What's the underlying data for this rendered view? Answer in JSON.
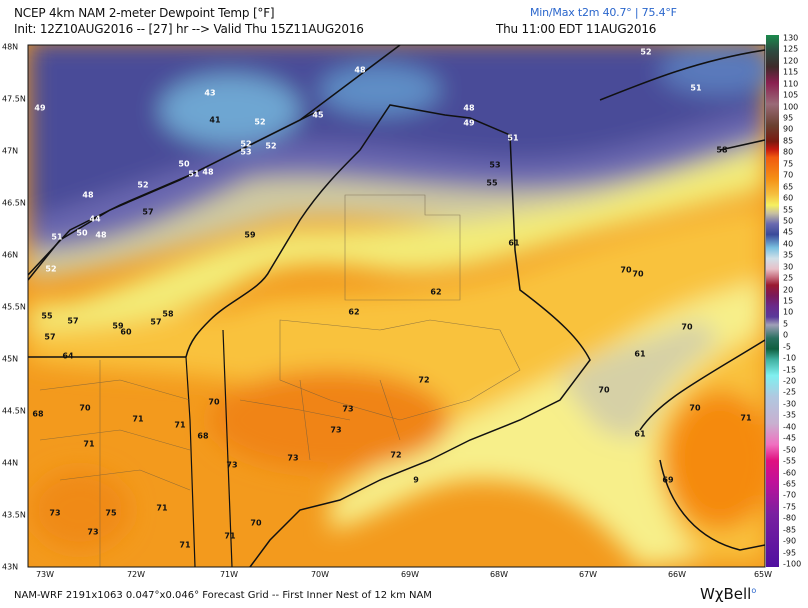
{
  "header": {
    "title": "NCEP 4km NAM 2-meter Dewpoint Temp [°F]",
    "init_line": "Init: 12Z10AUG2016 -- [27] hr --> Valid Thu 15Z11AUG2016",
    "local_time": "Thu 11:00 EDT 11AUG2016",
    "minmax": "Min/Max t2m 40.7° | 75.4°F",
    "minmax_color": "#2a66cc"
  },
  "latitude_labels": [
    "48N",
    "47.5N",
    "47N",
    "46.5N",
    "46N",
    "45.5N",
    "45N",
    "44.5N",
    "44N",
    "43.5N",
    "43N"
  ],
  "longitude_labels": [
    "73W",
    "72W",
    "71W",
    "70W",
    "69W",
    "68W",
    "67W",
    "66W",
    "65W"
  ],
  "colorbar": {
    "labels": [
      "130",
      "125",
      "120",
      "115",
      "110",
      "105",
      "100",
      "95",
      "90",
      "85",
      "80",
      "75",
      "70",
      "65",
      "60",
      "55",
      "50",
      "45",
      "40",
      "35",
      "30",
      "25",
      "20",
      "15",
      "10",
      "5",
      "0",
      "-5",
      "-10",
      "-15",
      "-20",
      "-25",
      "-30",
      "-35",
      "-40",
      "-45",
      "-50",
      "-55",
      "-60",
      "-65",
      "-70",
      "-75",
      "-80",
      "-85",
      "-90",
      "-95",
      "-100"
    ]
  },
  "stations": [
    "49",
    "43",
    "41",
    "52",
    "52",
    "53",
    "52",
    "50",
    "51",
    "48",
    "52",
    "48",
    "57",
    "44",
    "51",
    "50",
    "48",
    "59",
    "52",
    "55",
    "57",
    "59",
    "60",
    "57",
    "58",
    "57",
    "64",
    "48",
    "45",
    "48",
    "49",
    "51",
    "53",
    "55",
    "52",
    "51",
    "58",
    "61",
    "62",
    "62",
    "70",
    "70",
    "70",
    "70",
    "68",
    "71",
    "71",
    "71",
    "70",
    "68",
    "73",
    "73",
    "75",
    "73",
    "73",
    "71",
    "70",
    "71",
    "71",
    "72",
    "73",
    "73",
    "72",
    "9",
    "70",
    "61",
    "70",
    "71",
    "61",
    "69"
  ],
  "footer": {
    "text": "NAM-WRF 2191x1063 0.047°x0.046° Forecast Grid -- First Inner Nest of 12 km NAM",
    "logo": "WχBell"
  }
}
